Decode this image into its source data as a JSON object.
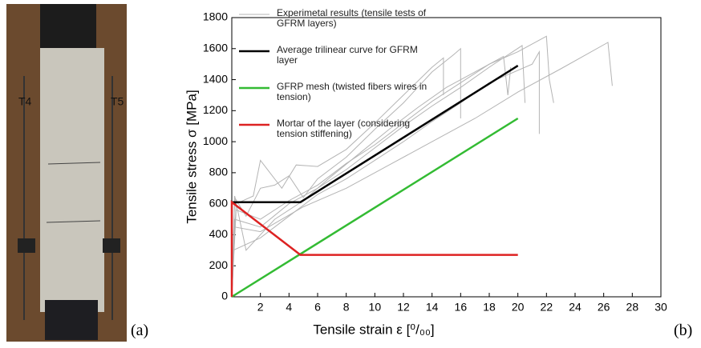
{
  "photo": {
    "labels": [
      "T4",
      "T5"
    ]
  },
  "panel_labels": [
    "(a)",
    "(b)"
  ],
  "chart_data": {
    "type": "line",
    "xlabel": "Tensile strain ε [⁰/₀₀]",
    "ylabel": "Tensile stress σ  [MPa]",
    "xlim": [
      0,
      30
    ],
    "ylim": [
      0,
      1800
    ],
    "xticks": [
      2,
      4,
      6,
      8,
      10,
      12,
      14,
      16,
      18,
      20,
      22,
      24,
      26,
      28,
      30
    ],
    "yticks": [
      0,
      200,
      400,
      600,
      800,
      1000,
      1200,
      1400,
      1600,
      1800
    ],
    "series": [
      {
        "name": "Experimetal results (tensile tests of GFRM layers)",
        "color": "#b4b4b4",
        "curves": [
          {
            "x": [
              0,
              0.2,
              1,
              2,
              3,
              4,
              5,
              6,
              8,
              10,
              12,
              14,
              15.5,
              16,
              16
            ],
            "values": [
              0,
              640,
              520,
              700,
              720,
              780,
              640,
              760,
              900,
              1080,
              1250,
              1450,
              1560,
              1600,
              1150
            ]
          },
          {
            "x": [
              0,
              0.3,
              1.5,
              2,
              3.5,
              4.5,
              6,
              8,
              10,
              12,
              14,
              14.8,
              14.8
            ],
            "values": [
              0,
              600,
              650,
              880,
              700,
              850,
              840,
              950,
              1120,
              1300,
              1480,
              1540,
              1300
            ]
          },
          {
            "x": [
              0,
              0.2,
              2,
              4,
              6,
              8,
              10,
              12,
              14,
              16,
              18,
              20.3,
              20.5
            ],
            "values": [
              0,
              500,
              450,
              600,
              700,
              820,
              960,
              1100,
              1230,
              1350,
              1480,
              1620,
              1250
            ]
          },
          {
            "x": [
              0,
              0.3,
              2,
              4,
              6,
              8,
              10,
              12,
              14,
              16,
              18,
              20,
              22,
              22.2,
              22.5
            ],
            "values": [
              0,
              560,
              500,
              620,
              720,
              860,
              980,
              1120,
              1260,
              1380,
              1500,
              1580,
              1680,
              1400,
              1250
            ]
          },
          {
            "x": [
              0,
              0.2,
              2,
              5,
              8,
              11,
              14,
              17,
              20,
              23,
              26.3,
              26.6
            ],
            "values": [
              0,
              450,
              420,
              580,
              700,
              850,
              1000,
              1150,
              1320,
              1470,
              1640,
              1360
            ]
          },
          {
            "x": [
              0,
              0.2,
              1,
              3,
              5,
              7,
              9,
              11,
              13,
              15,
              17,
              19,
              19.3,
              19.5
            ],
            "values": [
              0,
              650,
              300,
              500,
              620,
              780,
              930,
              1080,
              1220,
              1350,
              1450,
              1550,
              1300,
              1480
            ]
          },
          {
            "x": [
              0,
              0.1,
              2,
              4,
              6,
              8,
              10,
              12,
              14,
              16,
              18,
              21,
              21.5,
              21.5
            ],
            "values": [
              0,
              300,
              380,
              520,
              660,
              760,
              880,
              1000,
              1130,
              1250,
              1380,
              1500,
              1580,
              1050
            ]
          }
        ]
      },
      {
        "name": "Average trilinear curve for GFRM layer",
        "color": "#000000",
        "x": [
          0,
          4.8,
          20
        ],
        "values": [
          610,
          610,
          1490
        ]
      },
      {
        "name": "GFRP mesh (twisted fibers wires in tension)",
        "color": "#33bb33",
        "x": [
          0,
          20
        ],
        "values": [
          0,
          1150
        ]
      },
      {
        "name": "Mortar of the layer (considering tension stiffening)",
        "color": "#dd2222",
        "x": [
          0,
          0,
          4.8,
          20
        ],
        "values": [
          0,
          610,
          270,
          270
        ]
      }
    ]
  }
}
